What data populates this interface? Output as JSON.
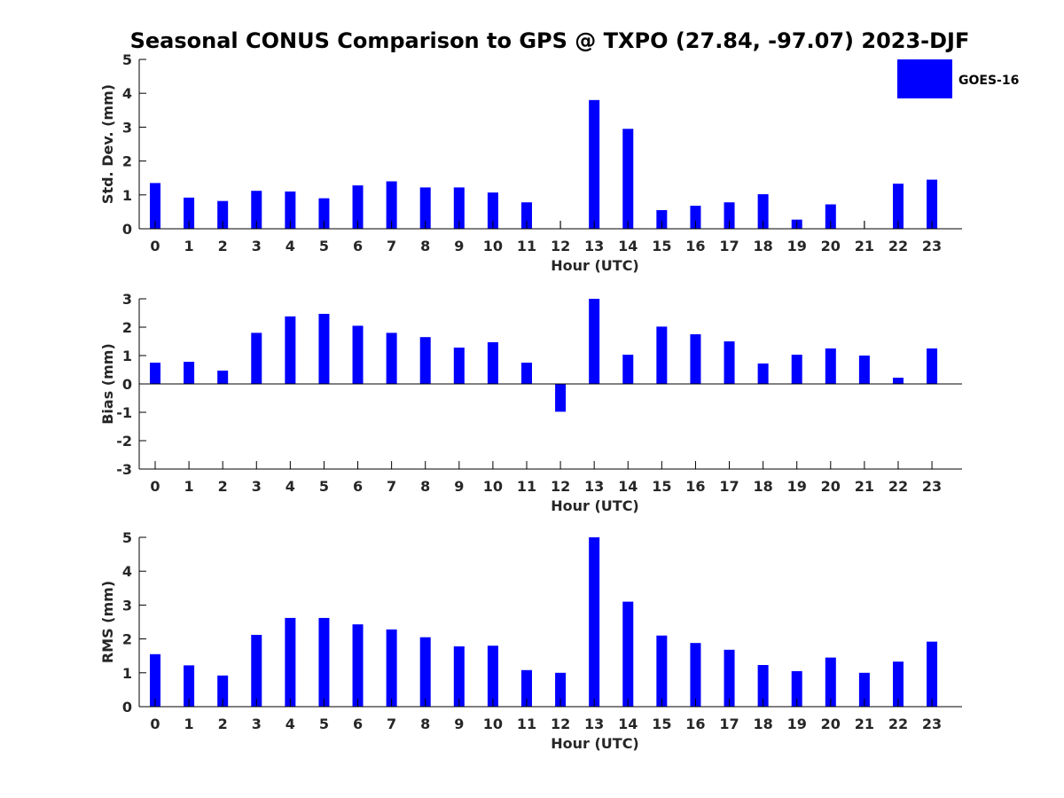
{
  "title": "Seasonal CONUS Comparison to GPS @ TXPO (27.84, -97.07) 2023-DJF",
  "legend": {
    "label": "GOES-16",
    "placement": "top-right"
  },
  "colors": {
    "bar": "#0000ff",
    "axis": "#000000",
    "text": "#262626"
  },
  "chart_data": [
    {
      "type": "bar",
      "categories": [
        "0",
        "1",
        "2",
        "3",
        "4",
        "5",
        "6",
        "7",
        "8",
        "9",
        "10",
        "11",
        "12",
        "13",
        "14",
        "15",
        "16",
        "17",
        "18",
        "19",
        "20",
        "21",
        "22",
        "23"
      ],
      "series": [
        {
          "name": "GOES-16",
          "values": [
            1.35,
            0.92,
            0.82,
            1.12,
            1.1,
            0.9,
            1.28,
            1.4,
            1.22,
            1.22,
            1.07,
            0.78,
            null,
            3.8,
            2.95,
            0.55,
            0.68,
            0.78,
            1.02,
            0.27,
            0.72,
            null,
            1.33,
            1.45
          ]
        }
      ],
      "xlabel": "Hour (UTC)",
      "ylabel": "Std. Dev. (mm)",
      "ylim": [
        0,
        5
      ],
      "yticks": [
        "0",
        "1",
        "2",
        "3",
        "4",
        "5"
      ],
      "grid": false
    },
    {
      "type": "bar",
      "categories": [
        "0",
        "1",
        "2",
        "3",
        "4",
        "5",
        "6",
        "7",
        "8",
        "9",
        "10",
        "11",
        "12",
        "13",
        "14",
        "15",
        "16",
        "17",
        "18",
        "19",
        "20",
        "21",
        "22",
        "23"
      ],
      "series": [
        {
          "name": "GOES-16",
          "values": [
            0.75,
            0.78,
            0.47,
            1.8,
            2.38,
            2.47,
            2.05,
            1.8,
            1.65,
            1.28,
            1.47,
            0.75,
            -0.98,
            3.0,
            1.03,
            2.02,
            1.75,
            1.5,
            0.72,
            1.03,
            1.25,
            1.0,
            0.22,
            1.25
          ]
        }
      ],
      "xlabel": "Hour (UTC)",
      "ylabel": "Bias (mm)",
      "ylim": [
        -3,
        3
      ],
      "yticks": [
        "-3",
        "-2",
        "-1",
        "0",
        "1",
        "2",
        "3"
      ],
      "grid": false
    },
    {
      "type": "bar",
      "categories": [
        "0",
        "1",
        "2",
        "3",
        "4",
        "5",
        "6",
        "7",
        "8",
        "9",
        "10",
        "11",
        "12",
        "13",
        "14",
        "15",
        "16",
        "17",
        "18",
        "19",
        "20",
        "21",
        "22",
        "23"
      ],
      "series": [
        {
          "name": "GOES-16",
          "values": [
            1.55,
            1.22,
            0.92,
            2.12,
            2.62,
            2.62,
            2.43,
            2.28,
            2.05,
            1.78,
            1.8,
            1.08,
            1.0,
            5.0,
            3.1,
            2.1,
            1.88,
            1.68,
            1.23,
            1.05,
            1.45,
            1.0,
            1.33,
            1.92
          ]
        }
      ],
      "xlabel": "Hour (UTC)",
      "ylabel": "RMS (mm)",
      "ylim": [
        0,
        5
      ],
      "yticks": [
        "0",
        "1",
        "2",
        "3",
        "4",
        "5"
      ],
      "grid": false
    }
  ]
}
